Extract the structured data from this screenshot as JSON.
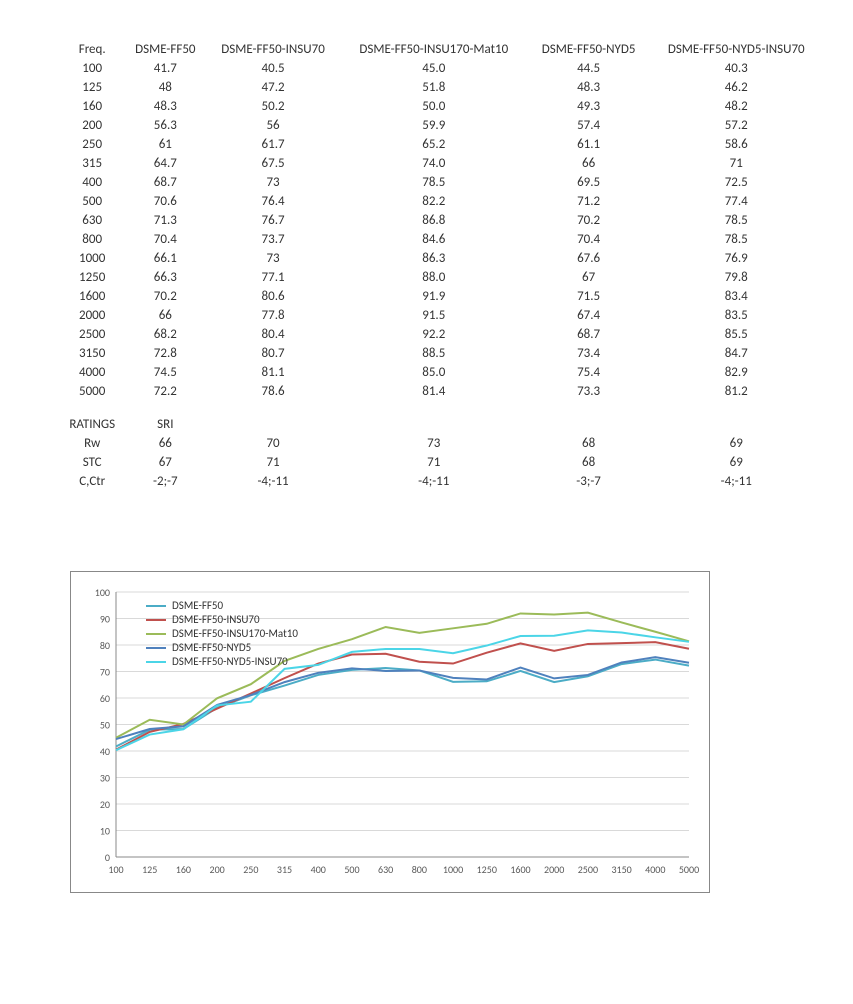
{
  "table": {
    "columns": [
      "Freq.",
      "DSME-FF50",
      "DSME-FF50-INSU70",
      "DSME-FF50-INSU170-Mat10",
      "DSME-FF50-NYD5",
      "DSME-FF50-NYD5-INSU70"
    ],
    "rows": [
      [
        "100",
        "41.7",
        "40.5",
        "45.0",
        "44.5",
        "40.3"
      ],
      [
        "125",
        "48",
        "47.2",
        "51.8",
        "48.3",
        "46.2"
      ],
      [
        "160",
        "48.3",
        "50.2",
        "50.0",
        "49.3",
        "48.2"
      ],
      [
        "200",
        "56.3",
        "56",
        "59.9",
        "57.4",
        "57.2"
      ],
      [
        "250",
        "61",
        "61.7",
        "65.2",
        "61.1",
        "58.6"
      ],
      [
        "315",
        "64.7",
        "67.5",
        "74.0",
        "66",
        "71"
      ],
      [
        "400",
        "68.7",
        "73",
        "78.5",
        "69.5",
        "72.5"
      ],
      [
        "500",
        "70.6",
        "76.4",
        "82.2",
        "71.2",
        "77.4"
      ],
      [
        "630",
        "71.3",
        "76.7",
        "86.8",
        "70.2",
        "78.5"
      ],
      [
        "800",
        "70.4",
        "73.7",
        "84.6",
        "70.4",
        "78.5"
      ],
      [
        "1000",
        "66.1",
        "73",
        "86.3",
        "67.6",
        "76.9"
      ],
      [
        "1250",
        "66.3",
        "77.1",
        "88.0",
        "67",
        "79.8"
      ],
      [
        "1600",
        "70.2",
        "80.6",
        "91.9",
        "71.5",
        "83.4"
      ],
      [
        "2000",
        "66",
        "77.8",
        "91.5",
        "67.4",
        "83.5"
      ],
      [
        "2500",
        "68.2",
        "80.4",
        "92.2",
        "68.7",
        "85.5"
      ],
      [
        "3150",
        "72.8",
        "80.7",
        "88.5",
        "73.4",
        "84.7"
      ],
      [
        "4000",
        "74.5",
        "81.1",
        "85.0",
        "75.4",
        "82.9"
      ],
      [
        "5000",
        "72.2",
        "78.6",
        "81.4",
        "73.3",
        "81.2"
      ]
    ],
    "ratings_header": [
      "RATINGS",
      "SRI",
      "",
      "",
      "",
      ""
    ],
    "ratings_rows": [
      [
        "Rw",
        "66",
        "70",
        "73",
        "68",
        "69"
      ],
      [
        "STC",
        "67",
        "71",
        "71",
        "68",
        "69"
      ],
      [
        "C,Ctr",
        "-2;-7",
        "-4;-11",
        "-4;-11",
        "-3;-7",
        "-4;-11"
      ]
    ]
  },
  "chart": {
    "type": "line",
    "categories": [
      "100",
      "125",
      "160",
      "200",
      "250",
      "315",
      "400",
      "500",
      "630",
      "800",
      "1000",
      "1250",
      "1600",
      "2000",
      "2500",
      "3150",
      "4000",
      "5000"
    ],
    "ylim": [
      0,
      100
    ],
    "ytick_step": 10,
    "grid_color": "#d9d9d9",
    "plot_border_color": "#888888",
    "background_color": "#ffffff",
    "label_fontsize": 10,
    "legend_fontsize": 11,
    "series": [
      {
        "name": "DSME-FF50",
        "color": "#4bacc6",
        "values": [
          41.7,
          48,
          48.3,
          56.3,
          61,
          64.7,
          68.7,
          70.6,
          71.3,
          70.4,
          66.1,
          66.3,
          70.2,
          66,
          68.2,
          72.8,
          74.5,
          72.2
        ]
      },
      {
        "name": "DSME-FF50-INSU70",
        "color": "#c0504d",
        "values": [
          40.5,
          47.2,
          50.2,
          56,
          61.7,
          67.5,
          73,
          76.4,
          76.7,
          73.7,
          73,
          77.1,
          80.6,
          77.8,
          80.4,
          80.7,
          81.1,
          78.6
        ]
      },
      {
        "name": "DSME-FF50-INSU170-Mat10",
        "color": "#9bbb59",
        "values": [
          45.0,
          51.8,
          50.0,
          59.9,
          65.2,
          74.0,
          78.5,
          82.2,
          86.8,
          84.6,
          86.3,
          88.0,
          91.9,
          91.5,
          92.2,
          88.5,
          85.0,
          81.4
        ]
      },
      {
        "name": "DSME-FF50-NYD5",
        "color": "#4f81bd",
        "values": [
          44.5,
          48.3,
          49.3,
          57.4,
          61.1,
          66,
          69.5,
          71.2,
          70.2,
          70.4,
          67.6,
          67,
          71.5,
          67.4,
          68.7,
          73.4,
          75.4,
          73.3
        ]
      },
      {
        "name": "DSME-FF50-NYD5-INSU70",
        "color": "#4bd5e7",
        "values": [
          40.3,
          46.2,
          48.2,
          57.2,
          58.6,
          71,
          72.5,
          77.4,
          78.5,
          78.5,
          76.9,
          79.8,
          83.4,
          83.5,
          85.5,
          84.7,
          82.9,
          81.2
        ]
      }
    ]
  }
}
